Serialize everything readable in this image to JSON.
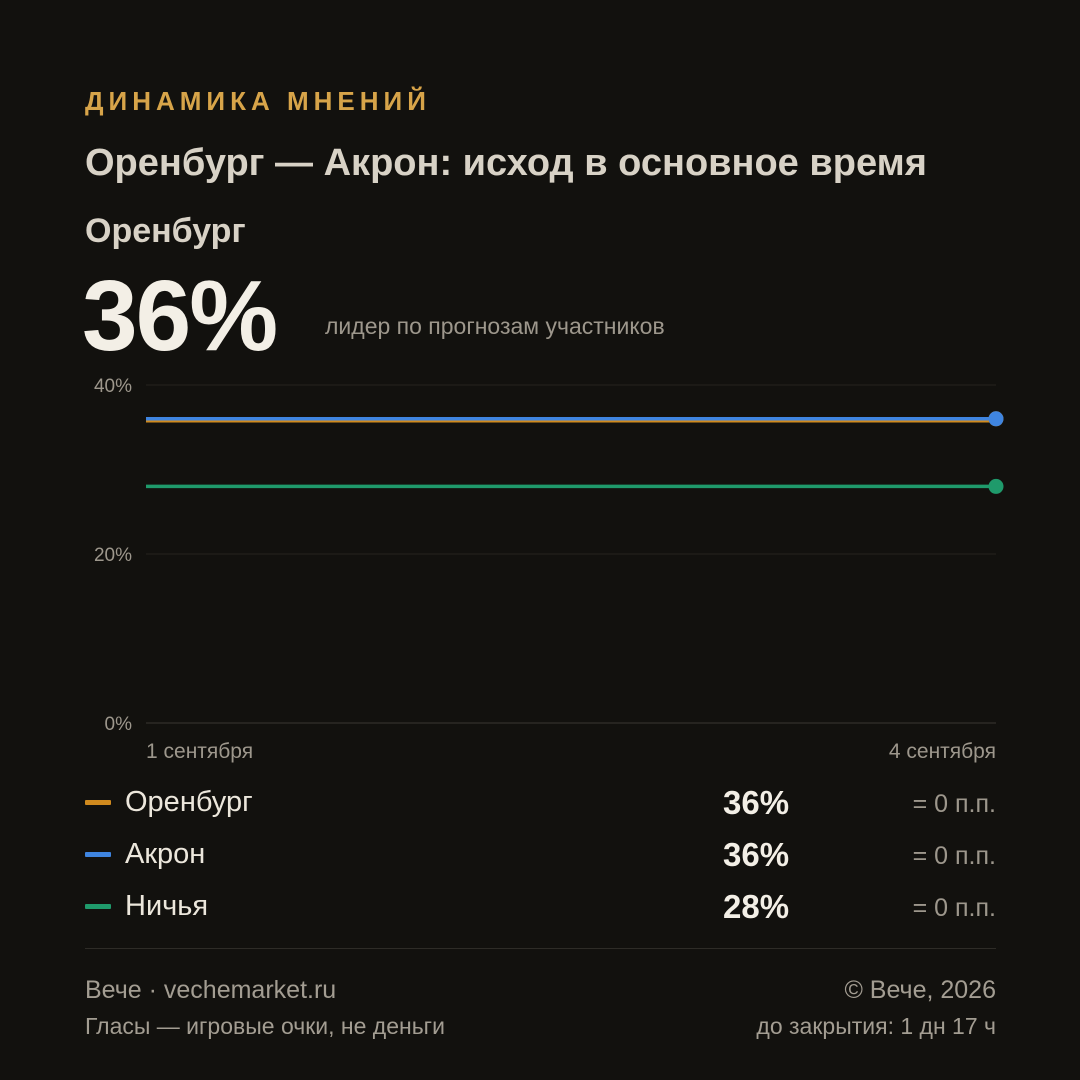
{
  "header": {
    "kicker": "ДИНАМИКА МНЕНИЙ",
    "title": "Оренбург — Акрон: исход в основное время",
    "leader_name": "Оренбург",
    "leader_value": "36%",
    "leader_note": "лидер по прогнозам участников"
  },
  "chart_data": {
    "type": "line",
    "x": [
      "1 сентября",
      "4 сентября"
    ],
    "x_tick_labels": [
      "1 сентября",
      "4 сентября"
    ],
    "ylim": [
      0,
      40
    ],
    "y_ticks": [
      0,
      20,
      40
    ],
    "y_tick_labels": [
      "0%",
      "20%",
      "40%"
    ],
    "grid": true,
    "series": [
      {
        "name": "Оренбург",
        "color": "#d08a1e",
        "values": [
          36,
          36
        ]
      },
      {
        "name": "Акрон",
        "color": "#3f85e0",
        "values": [
          36,
          36
        ]
      },
      {
        "name": "Ничья",
        "color": "#1f9a6b",
        "values": [
          28,
          28
        ]
      }
    ]
  },
  "legend": [
    {
      "label": "Оренбург",
      "color": "#d08a1e",
      "value": "36%",
      "change": "= 0 п.п."
    },
    {
      "label": "Акрон",
      "color": "#3f85e0",
      "value": "36%",
      "change": "= 0 п.п."
    },
    {
      "label": "Ничья",
      "color": "#1f9a6b",
      "value": "28%",
      "change": "= 0 п.п."
    }
  ],
  "footer": {
    "brand": "Вече · vechemarket.ru",
    "disclaimer": "Гласы — игровые очки, не деньги",
    "copyright": "© Вече, 2026",
    "closing": "до закрытия: 1 дн 17 ч"
  }
}
